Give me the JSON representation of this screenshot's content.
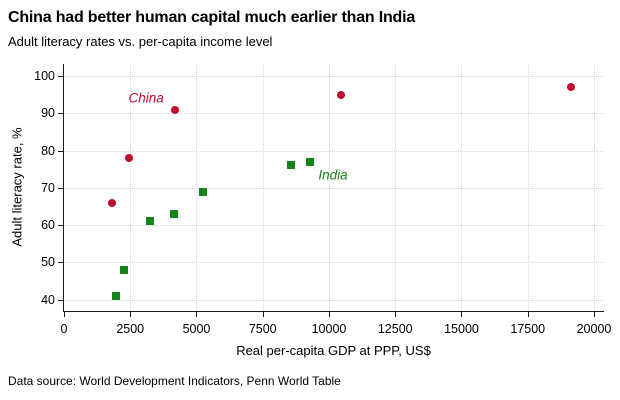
{
  "chart_data": {
    "type": "scatter",
    "title": "China had better human capital much earlier than India",
    "subtitle": "Adult literacy rates vs. per-capita income level",
    "xlabel": "Real per-capita GDP at PPP, US$",
    "ylabel": "Adult literacy rate, %",
    "source_note": "Data source: World Development Indicators, Penn World Table",
    "xlim": [
      0,
      20340
    ],
    "ylim": [
      37,
      103.2
    ],
    "x_ticks": [
      0,
      2500,
      5000,
      7500,
      10000,
      12500,
      15000,
      17500,
      20000
    ],
    "y_ticks": [
      40,
      50,
      60,
      70,
      80,
      90,
      100
    ],
    "grid": true,
    "legend": "inline-series-labels",
    "series": [
      {
        "name": "China",
        "marker": "circle",
        "color": "#c10d2e",
        "points": [
          [
            1800,
            66
          ],
          [
            2450,
            78
          ],
          [
            4200,
            91
          ],
          [
            10450,
            95
          ],
          [
            19150,
            97
          ]
        ],
        "label_pos": [
          3100,
          94
        ]
      },
      {
        "name": "India",
        "marker": "square",
        "color": "#17821a",
        "points": [
          [
            1950,
            41
          ],
          [
            2250,
            48
          ],
          [
            3250,
            61
          ],
          [
            4150,
            63
          ],
          [
            5250,
            69
          ],
          [
            8550,
            76
          ],
          [
            9300,
            77
          ]
        ],
        "label_pos": [
          10150,
          73.4
        ]
      }
    ]
  }
}
